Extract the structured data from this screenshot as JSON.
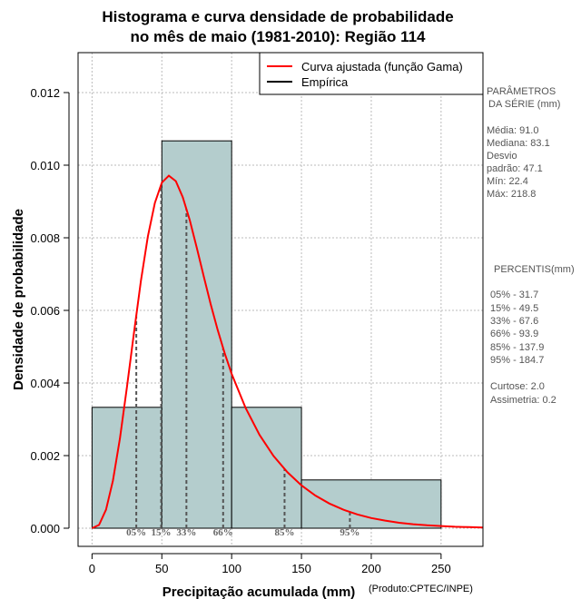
{
  "chart_data": {
    "type": "bar",
    "title_line1": "Histograma e curva densidade de probabilidade",
    "title_line2": "no mês de maio (1981-2010): Região 114",
    "xlabel": "Precipitação acumulada (mm)",
    "ylabel": "Densidade de probabilidade",
    "credit": "(Produto:CPTEC/INPE)",
    "xlim": [
      -10,
      280
    ],
    "ylim": [
      -0.0005,
      0.0131
    ],
    "x_ticks": [
      "0",
      "50",
      "100",
      "150",
      "200",
      "250"
    ],
    "y_ticks": [
      "0.000",
      "0.002",
      "0.004",
      "0.006",
      "0.008",
      "0.010",
      "0.012"
    ],
    "grid": true,
    "bins": [
      {
        "from": 0,
        "to": 50,
        "density": 0.00333
      },
      {
        "from": 50,
        "to": 100,
        "density": 0.01067
      },
      {
        "from": 100,
        "to": 150,
        "density": 0.00333
      },
      {
        "from": 150,
        "to": 250,
        "density": 0.00133
      }
    ],
    "bar_color": "#b4cdcd",
    "curve_color": "#ff0000",
    "gamma_curve": {
      "x": [
        0,
        5,
        10,
        15,
        20,
        25,
        30,
        35,
        40,
        45,
        50,
        55,
        60,
        65,
        70,
        75,
        80,
        85,
        90,
        95,
        100,
        110,
        120,
        130,
        140,
        150,
        160,
        170,
        180,
        190,
        200,
        210,
        220,
        230,
        240,
        250,
        260,
        270,
        280
      ],
      "y": [
        0.0,
        9e-05,
        0.00051,
        0.00131,
        0.00247,
        0.00388,
        0.00537,
        0.00681,
        0.00804,
        0.00896,
        0.00952,
        0.00971,
        0.00956,
        0.00912,
        0.00849,
        0.00773,
        0.00694,
        0.00617,
        0.00546,
        0.00482,
        0.00425,
        0.00331,
        0.00257,
        0.00199,
        0.00154,
        0.00118,
        0.0009,
        0.00068,
        0.00051,
        0.00038,
        0.00028,
        0.00021,
        0.00015,
        0.00011,
        8e-05,
        6e-05,
        4e-05,
        3e-05,
        2e-05
      ]
    },
    "legend": {
      "position": "top-right",
      "entries": [
        {
          "label": "Curva ajustada (função Gama)",
          "color": "#ff0000"
        },
        {
          "label": "Empírica",
          "color": "#000000"
        }
      ]
    },
    "percentiles": [
      {
        "label": "05%",
        "value": 31.7
      },
      {
        "label": "15%",
        "value": 49.5
      },
      {
        "label": "33%",
        "value": 67.6
      },
      {
        "label": "66%",
        "value": 93.9
      },
      {
        "label": "85%",
        "value": 137.9
      },
      {
        "label": "95%",
        "value": 184.7
      }
    ],
    "side_panel": {
      "params_title_1": "PARÂMETROS",
      "params_title_2": "DA SÉRIE (mm)",
      "media": "Média:  91.0",
      "mediana": "Mediana:  83.1",
      "desvio_1": "Desvio",
      "desvio_2": "padrão:  47.1",
      "min": "Mín:  22.4",
      "max": "Máx:  218.8",
      "pct_title": "PERCENTIS(mm)",
      "pct_lines": [
        "05% -   31.7",
        "15% -   49.5",
        "33% -   67.6",
        "66% -   93.9",
        "85% -   137.9",
        "95% -   184.7"
      ],
      "curtose": "Curtose:  2.0",
      "assimetria": "Assimetria:  0.2"
    }
  }
}
